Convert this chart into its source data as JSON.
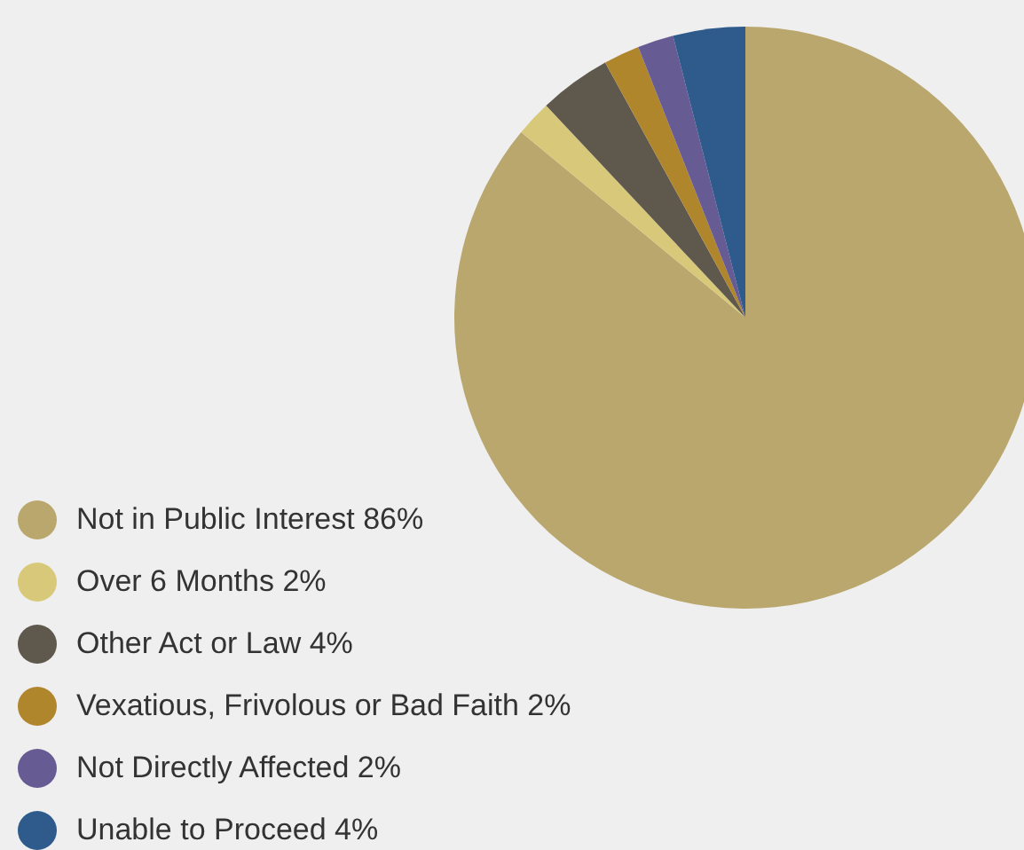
{
  "chart_data": {
    "type": "pie",
    "categories": [
      "Not in Public Interest 86%",
      "Over 6 Months 2%",
      "Other Act or Law 4%",
      "Vexatious, Frivolous or Bad Faith 2%",
      "Not Directly Affected 2%",
      "Unable to Proceed 4%"
    ],
    "values": [
      86,
      2,
      4,
      2,
      2,
      4
    ],
    "colors": [
      "#b9a76d",
      "#d8c97a",
      "#5e584d",
      "#b0862d",
      "#675b94",
      "#2e5b8c"
    ],
    "legend": "bottom left"
  }
}
